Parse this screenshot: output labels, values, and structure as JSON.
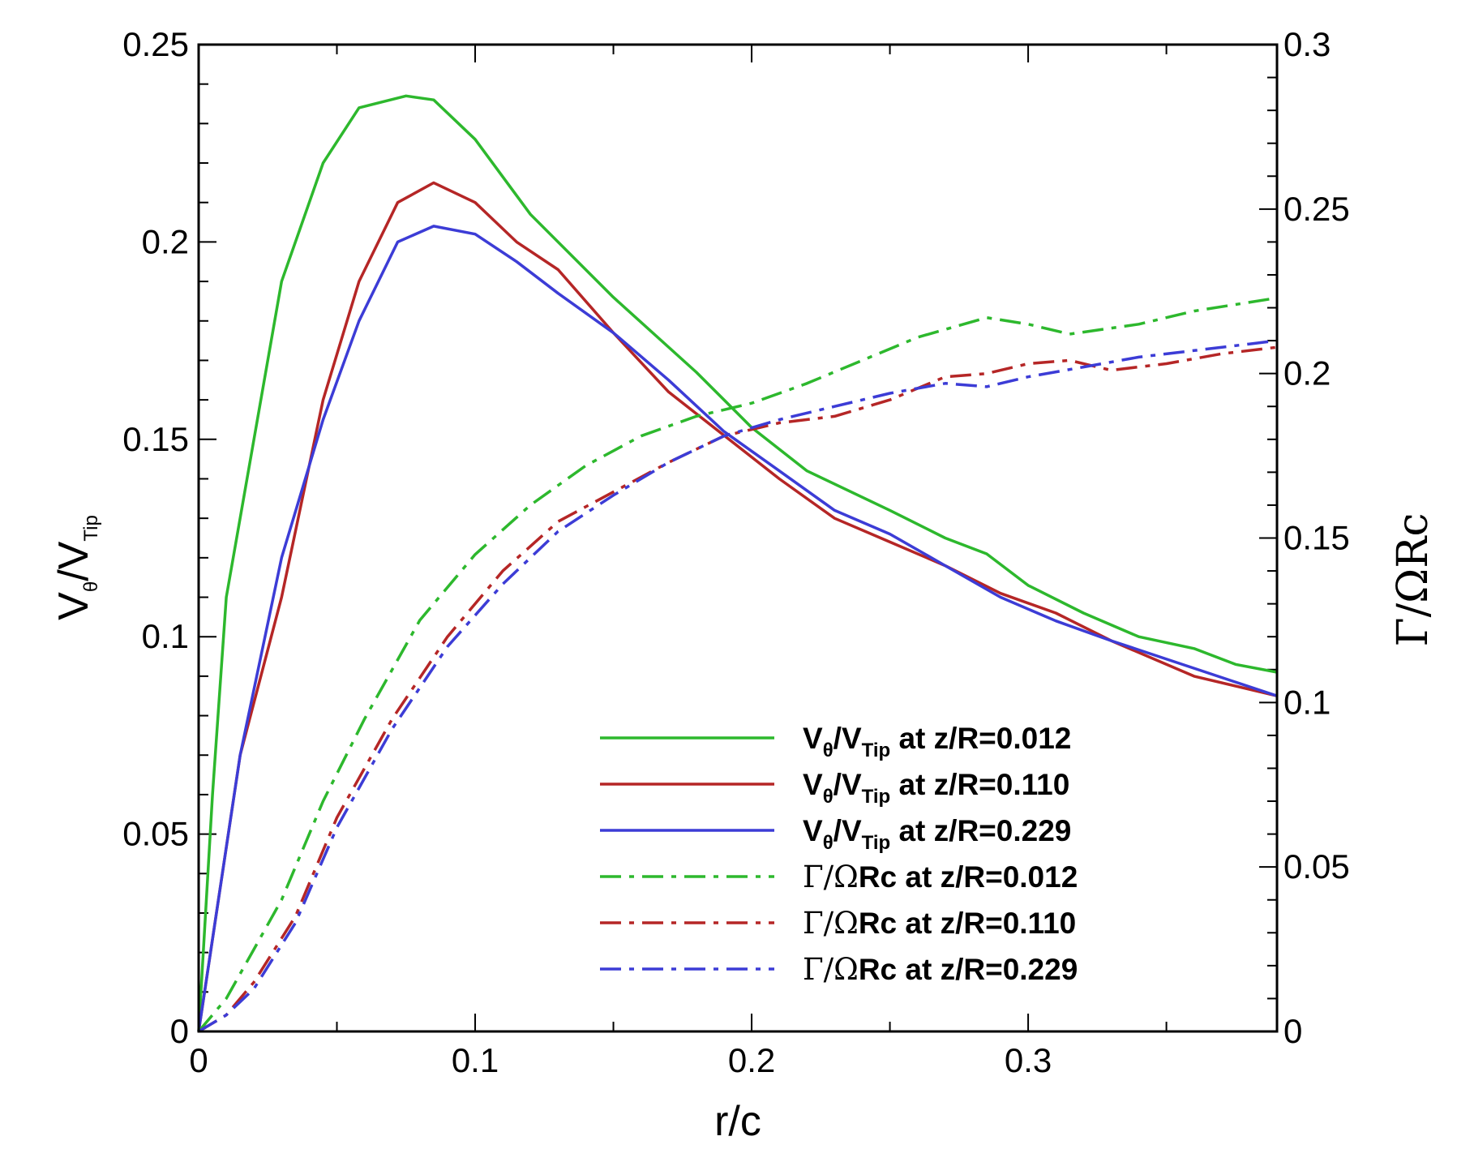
{
  "chart_data": {
    "type": "line",
    "title": "",
    "xlabel": "r/c",
    "ylabel_left": {
      "main": "V",
      "sub1": "θ",
      "mid": "/V",
      "sub2": "Tip"
    },
    "ylabel_right": "Γ/ΩRc",
    "xlim": [
      0,
      0.39
    ],
    "ylim_left": [
      0,
      0.25
    ],
    "ylim_right": [
      0,
      0.3
    ],
    "x_ticks": [
      "0",
      "0.1",
      "0.2",
      "0.3"
    ],
    "y_left_ticks": [
      "0",
      "0.05",
      "0.1",
      "0.15",
      "0.2",
      "0.25"
    ],
    "y_right_ticks": [
      "0",
      "0.05",
      "0.1",
      "0.15",
      "0.2",
      "0.25",
      "0.3"
    ],
    "legend_placement": "lower-right",
    "series": [
      {
        "name": "Vθ/VTip at z/R=0.012",
        "legend": {
          "pre": "V",
          "s1": "θ",
          "mid": "/V",
          "s2": "Tip",
          "post": " at z/R=0.012"
        },
        "axis": "left",
        "style": "solid",
        "color": "#2db82d",
        "points": [
          [
            0,
            0
          ],
          [
            0.005,
            0.06
          ],
          [
            0.01,
            0.11
          ],
          [
            0.02,
            0.15
          ],
          [
            0.03,
            0.19
          ],
          [
            0.045,
            0.22
          ],
          [
            0.058,
            0.234
          ],
          [
            0.075,
            0.237
          ],
          [
            0.085,
            0.236
          ],
          [
            0.1,
            0.226
          ],
          [
            0.12,
            0.207
          ],
          [
            0.15,
            0.186
          ],
          [
            0.18,
            0.167
          ],
          [
            0.2,
            0.153
          ],
          [
            0.22,
            0.142
          ],
          [
            0.25,
            0.132
          ],
          [
            0.27,
            0.125
          ],
          [
            0.285,
            0.121
          ],
          [
            0.3,
            0.113
          ],
          [
            0.32,
            0.106
          ],
          [
            0.34,
            0.1
          ],
          [
            0.36,
            0.097
          ],
          [
            0.375,
            0.093
          ],
          [
            0.39,
            0.091
          ]
        ]
      },
      {
        "name": "Vθ/VTip at z/R=0.110",
        "legend": {
          "pre": "V",
          "s1": "θ",
          "mid": "/V",
          "s2": "Tip",
          "post": " at z/R=0.110"
        },
        "axis": "left",
        "style": "solid",
        "color": "#b52626",
        "points": [
          [
            0,
            0
          ],
          [
            0.015,
            0.07
          ],
          [
            0.03,
            0.11
          ],
          [
            0.045,
            0.16
          ],
          [
            0.058,
            0.19
          ],
          [
            0.072,
            0.21
          ],
          [
            0.085,
            0.215
          ],
          [
            0.1,
            0.21
          ],
          [
            0.115,
            0.2
          ],
          [
            0.13,
            0.193
          ],
          [
            0.15,
            0.177
          ],
          [
            0.17,
            0.162
          ],
          [
            0.19,
            0.151
          ],
          [
            0.21,
            0.14
          ],
          [
            0.23,
            0.13
          ],
          [
            0.25,
            0.124
          ],
          [
            0.27,
            0.118
          ],
          [
            0.29,
            0.111
          ],
          [
            0.31,
            0.106
          ],
          [
            0.33,
            0.099
          ],
          [
            0.36,
            0.09
          ],
          [
            0.39,
            0.085
          ]
        ]
      },
      {
        "name": "Vθ/VTip at z/R=0.229",
        "legend": {
          "pre": "V",
          "s1": "θ",
          "mid": "/V",
          "s2": "Tip",
          "post": " at z/R=0.229"
        },
        "axis": "left",
        "style": "solid",
        "color": "#3c3cd6",
        "points": [
          [
            0,
            0
          ],
          [
            0.015,
            0.07
          ],
          [
            0.03,
            0.12
          ],
          [
            0.045,
            0.155
          ],
          [
            0.058,
            0.18
          ],
          [
            0.072,
            0.2
          ],
          [
            0.085,
            0.204
          ],
          [
            0.1,
            0.202
          ],
          [
            0.115,
            0.195
          ],
          [
            0.13,
            0.187
          ],
          [
            0.15,
            0.177
          ],
          [
            0.17,
            0.165
          ],
          [
            0.19,
            0.152
          ],
          [
            0.21,
            0.142
          ],
          [
            0.23,
            0.132
          ],
          [
            0.25,
            0.126
          ],
          [
            0.27,
            0.118
          ],
          [
            0.29,
            0.11
          ],
          [
            0.31,
            0.104
          ],
          [
            0.33,
            0.099
          ],
          [
            0.36,
            0.092
          ],
          [
            0.39,
            0.085
          ]
        ]
      },
      {
        "name": "Γ/ΩRc at z/R=0.012",
        "legend": {
          "greek": "Γ/Ω",
          "post": "Rc at z/R=0.012"
        },
        "axis": "right",
        "style": "dashdot",
        "color": "#2db82d",
        "points": [
          [
            0,
            0
          ],
          [
            0.01,
            0.01
          ],
          [
            0.02,
            0.025
          ],
          [
            0.03,
            0.04
          ],
          [
            0.045,
            0.07
          ],
          [
            0.06,
            0.095
          ],
          [
            0.08,
            0.125
          ],
          [
            0.1,
            0.145
          ],
          [
            0.12,
            0.16
          ],
          [
            0.14,
            0.172
          ],
          [
            0.16,
            0.181
          ],
          [
            0.18,
            0.187
          ],
          [
            0.2,
            0.191
          ],
          [
            0.22,
            0.197
          ],
          [
            0.24,
            0.204
          ],
          [
            0.26,
            0.211
          ],
          [
            0.285,
            0.217
          ],
          [
            0.3,
            0.215
          ],
          [
            0.315,
            0.212
          ],
          [
            0.34,
            0.215
          ],
          [
            0.36,
            0.219
          ],
          [
            0.39,
            0.223
          ]
        ]
      },
      {
        "name": "Γ/ΩRc at z/R=0.110",
        "legend": {
          "greek": "Γ/Ω",
          "post": "Rc at z/R=0.110"
        },
        "axis": "right",
        "style": "dashdot",
        "color": "#b52626",
        "points": [
          [
            0,
            0
          ],
          [
            0.01,
            0.005
          ],
          [
            0.02,
            0.015
          ],
          [
            0.035,
            0.035
          ],
          [
            0.05,
            0.065
          ],
          [
            0.07,
            0.095
          ],
          [
            0.09,
            0.12
          ],
          [
            0.11,
            0.14
          ],
          [
            0.13,
            0.155
          ],
          [
            0.15,
            0.164
          ],
          [
            0.17,
            0.173
          ],
          [
            0.19,
            0.181
          ],
          [
            0.21,
            0.185
          ],
          [
            0.23,
            0.187
          ],
          [
            0.25,
            0.192
          ],
          [
            0.27,
            0.199
          ],
          [
            0.285,
            0.2
          ],
          [
            0.3,
            0.203
          ],
          [
            0.315,
            0.204
          ],
          [
            0.33,
            0.201
          ],
          [
            0.35,
            0.203
          ],
          [
            0.37,
            0.206
          ],
          [
            0.39,
            0.208
          ]
        ]
      },
      {
        "name": "Γ/ΩRc at z/R=0.229",
        "legend": {
          "greek": "Γ/Ω",
          "post": "Rc at z/R=0.229"
        },
        "axis": "right",
        "style": "dashdot",
        "color": "#3c3cd6",
        "points": [
          [
            0,
            0
          ],
          [
            0.01,
            0.005
          ],
          [
            0.02,
            0.013
          ],
          [
            0.035,
            0.033
          ],
          [
            0.05,
            0.062
          ],
          [
            0.07,
            0.092
          ],
          [
            0.09,
            0.117
          ],
          [
            0.11,
            0.136
          ],
          [
            0.13,
            0.152
          ],
          [
            0.15,
            0.163
          ],
          [
            0.17,
            0.173
          ],
          [
            0.19,
            0.181
          ],
          [
            0.21,
            0.186
          ],
          [
            0.23,
            0.19
          ],
          [
            0.25,
            0.194
          ],
          [
            0.27,
            0.197
          ],
          [
            0.285,
            0.196
          ],
          [
            0.3,
            0.199
          ],
          [
            0.32,
            0.202
          ],
          [
            0.34,
            0.205
          ],
          [
            0.36,
            0.207
          ],
          [
            0.38,
            0.209
          ],
          [
            0.39,
            0.21
          ]
        ]
      }
    ]
  }
}
